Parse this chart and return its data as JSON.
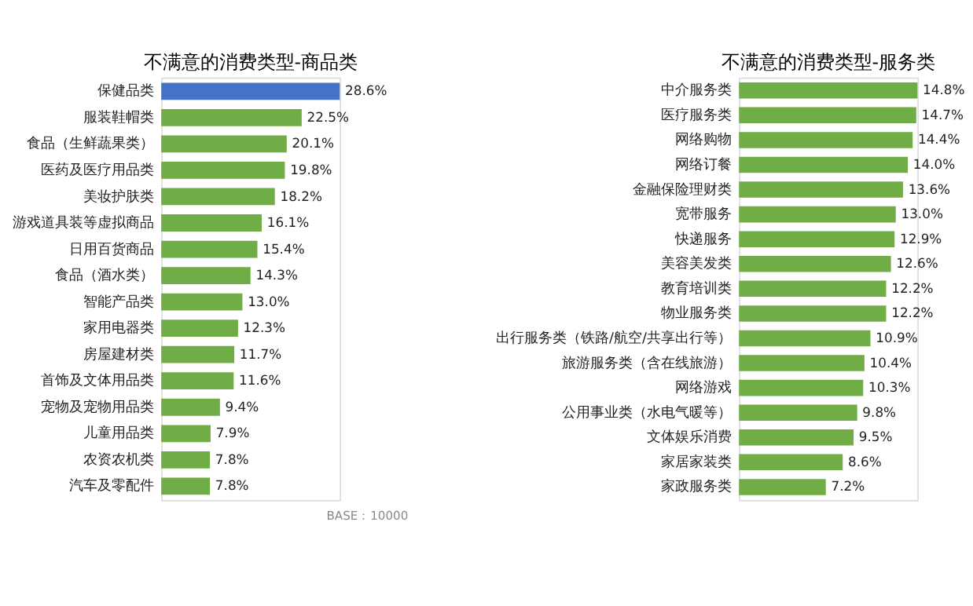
{
  "chart_data": [
    {
      "type": "bar",
      "orientation": "horizontal",
      "title": "不满意的消费类型-商品类",
      "tick_labels": "y",
      "categories": [
        "保健品类",
        "服装鞋帽类",
        "食品（生鲜蔬果类）",
        "医药及医疗用品类",
        "美妆护肤类",
        "游戏道具装等虚拟商品",
        "日用百货商品",
        "食品（酒水类）",
        "智能产品类",
        "家用电器类",
        "房屋建材类",
        "首饰及文体用品类",
        "宠物及宠物用品类",
        "儿童用品类",
        "农资农机类",
        "汽车及零配件"
      ],
      "values": [
        28.6,
        22.5,
        20.1,
        19.8,
        18.2,
        16.1,
        15.4,
        14.3,
        13.0,
        12.3,
        11.7,
        11.6,
        9.4,
        7.9,
        7.8,
        7.8
      ],
      "value_labels": [
        "28.6%",
        "22.5%",
        "20.1%",
        "19.8%",
        "18.2%",
        "16.1%",
        "15.4%",
        "14.3%",
        "13.0%",
        "12.3%",
        "11.7%",
        "11.6%",
        "9.4%",
        "7.9%",
        "7.8%",
        "7.8%"
      ],
      "colors": [
        "#4472c4",
        "#70ad47",
        "#70ad47",
        "#70ad47",
        "#70ad47",
        "#70ad47",
        "#70ad47",
        "#70ad47",
        "#70ad47",
        "#70ad47",
        "#70ad47",
        "#70ad47",
        "#70ad47",
        "#70ad47",
        "#70ad47",
        "#70ad47"
      ],
      "annotations": [
        "BASE：10000"
      ]
    },
    {
      "type": "bar",
      "orientation": "horizontal",
      "title": "不满意的消费类型-服务类",
      "tick_labels": "y",
      "categories": [
        "中介服务类",
        "医疗服务类",
        "网络购物",
        "网络订餐",
        "金融保险理财类",
        "宽带服务",
        "快递服务",
        "美容美发类",
        "教育培训类",
        "物业服务类",
        "出行服务类（铁路/航空/共享出行等）",
        "旅游服务类（含在线旅游）",
        "网络游戏",
        "公用事业类（水电气暖等）",
        "文体娱乐消费",
        "家居家装类",
        "家政服务类"
      ],
      "values": [
        14.8,
        14.7,
        14.4,
        14.0,
        13.6,
        13.0,
        12.9,
        12.6,
        12.2,
        12.2,
        10.9,
        10.4,
        10.3,
        9.8,
        9.5,
        8.6,
        7.2
      ],
      "value_labels": [
        "14.8%",
        "14.7%",
        "14.4%",
        "14.0%",
        "13.6%",
        "13.0%",
        "12.9%",
        "12.6%",
        "12.2%",
        "12.2%",
        "10.9%",
        "10.4%",
        "10.3%",
        "9.8%",
        "9.5%",
        "8.6%",
        "7.2%"
      ],
      "colors": [
        "#70ad47",
        "#70ad47",
        "#70ad47",
        "#70ad47",
        "#70ad47",
        "#70ad47",
        "#70ad47",
        "#70ad47",
        "#70ad47",
        "#70ad47",
        "#70ad47",
        "#70ad47",
        "#70ad47",
        "#70ad47",
        "#70ad47",
        "#70ad47",
        "#70ad47"
      ]
    }
  ]
}
